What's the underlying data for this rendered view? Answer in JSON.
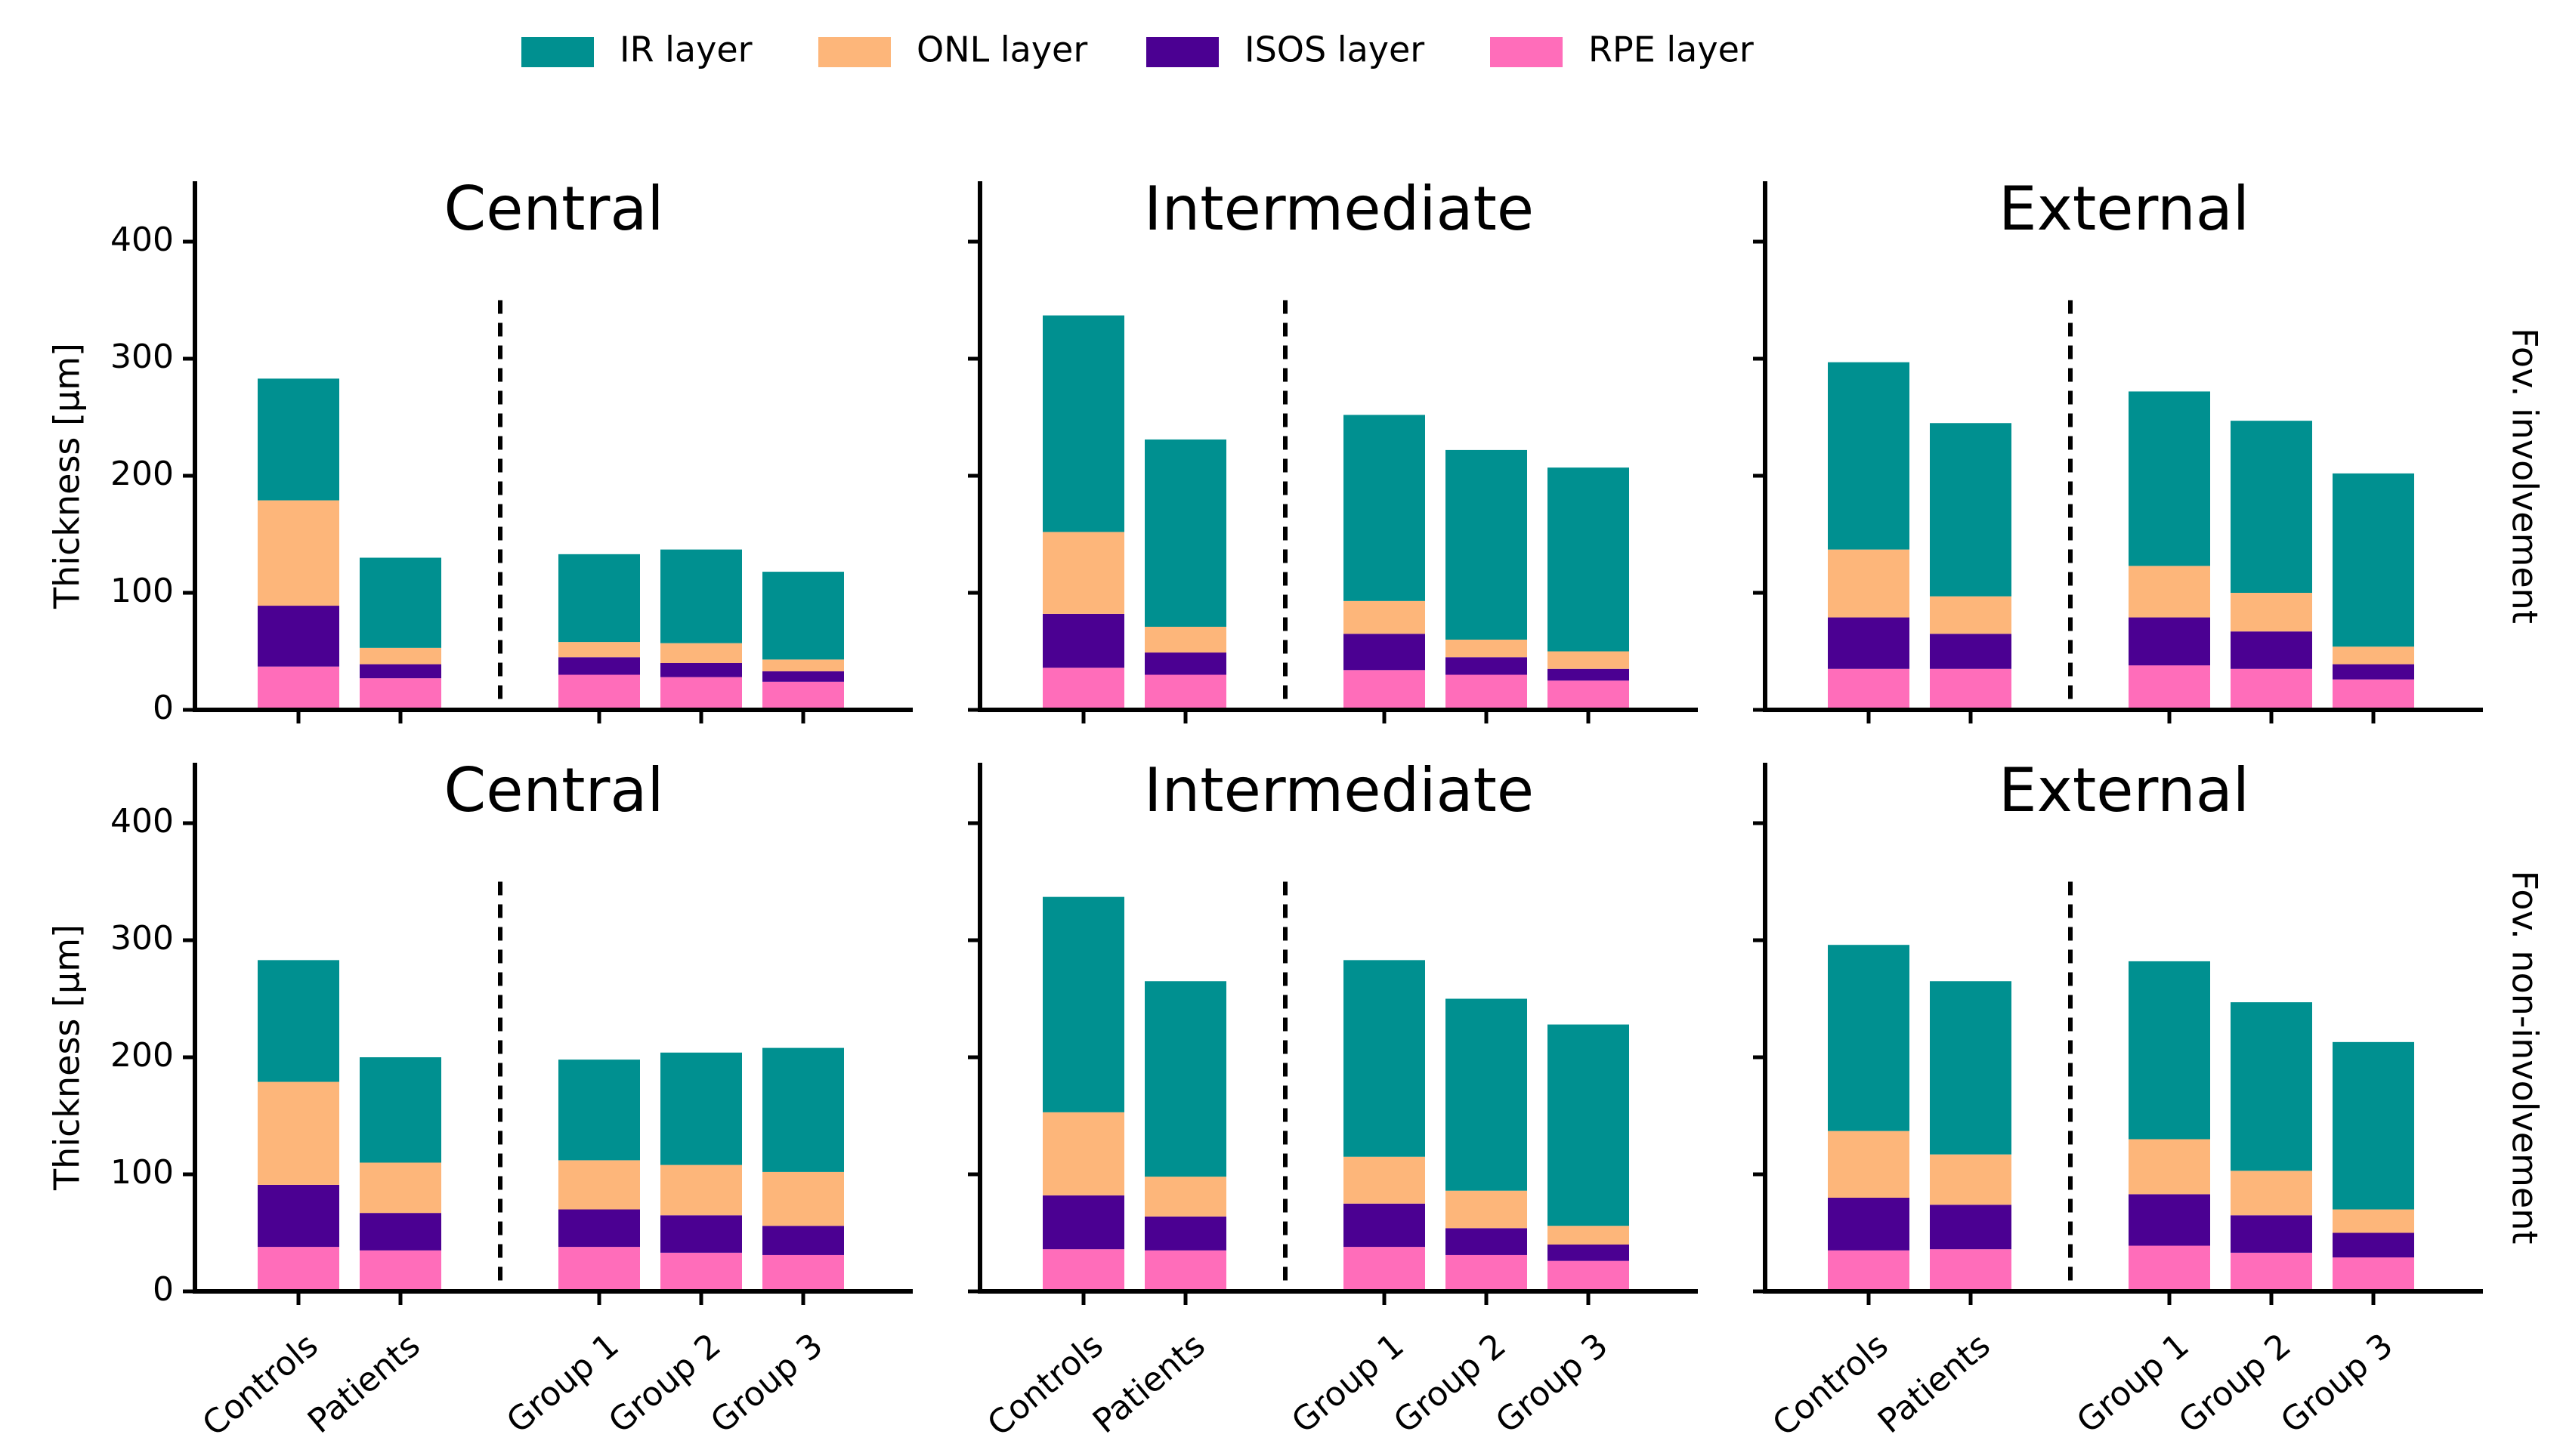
{
  "legend": [
    {
      "label": "IR layer",
      "color": "#009090"
    },
    {
      "label": "ONL layer",
      "color": "#fdb67a"
    },
    {
      "label": "ISOS layer",
      "color": "#4b0092"
    },
    {
      "label": "RPE layer",
      "color": "#ff6dba"
    }
  ],
  "colors": {
    "ir": "#009090",
    "onl": "#fdb67a",
    "isos": "#4b0092",
    "rpe": "#ff6dba"
  },
  "ylabel": "Thickness [μm]",
  "row_labels": [
    "Fov. involvement",
    "Fov. non-involvement"
  ],
  "chart_data": {
    "type": "bar",
    "stacked": true,
    "categories": [
      "Controls",
      "Patients",
      "Group 1",
      "Group 2",
      "Group 3"
    ],
    "series_names": [
      "RPE layer",
      "ISOS layer",
      "ONL layer",
      "IR layer"
    ],
    "ylim": [
      0,
      450
    ],
    "yticks": [
      "0",
      "100",
      "200",
      "300",
      "400"
    ],
    "divider": "dashed line between Patients and Group 1",
    "panels": [
      {
        "title": "Central",
        "row": "Fov. involvement",
        "bars": [
          {
            "category": "Controls",
            "rpe": 37,
            "isos": 52,
            "onl": 90,
            "ir": 104
          },
          {
            "category": "Patients",
            "rpe": 27,
            "isos": 12,
            "onl": 14,
            "ir": 77
          },
          {
            "category": "Group 1",
            "rpe": 30,
            "isos": 15,
            "onl": 13,
            "ir": 75
          },
          {
            "category": "Group 2",
            "rpe": 28,
            "isos": 12,
            "onl": 17,
            "ir": 80
          },
          {
            "category": "Group 3",
            "rpe": 24,
            "isos": 9,
            "onl": 10,
            "ir": 75
          }
        ]
      },
      {
        "title": "Intermediate",
        "row": "Fov. involvement",
        "bars": [
          {
            "category": "Controls",
            "rpe": 36,
            "isos": 46,
            "onl": 70,
            "ir": 185
          },
          {
            "category": "Patients",
            "rpe": 30,
            "isos": 19,
            "onl": 22,
            "ir": 160
          },
          {
            "category": "Group 1",
            "rpe": 34,
            "isos": 31,
            "onl": 28,
            "ir": 159
          },
          {
            "category": "Group 2",
            "rpe": 30,
            "isos": 15,
            "onl": 15,
            "ir": 162
          },
          {
            "category": "Group 3",
            "rpe": 25,
            "isos": 10,
            "onl": 15,
            "ir": 157
          }
        ]
      },
      {
        "title": "External",
        "row": "Fov. involvement",
        "bars": [
          {
            "category": "Controls",
            "rpe": 35,
            "isos": 44,
            "onl": 58,
            "ir": 160
          },
          {
            "category": "Patients",
            "rpe": 35,
            "isos": 30,
            "onl": 32,
            "ir": 148
          },
          {
            "category": "Group 1",
            "rpe": 38,
            "isos": 41,
            "onl": 44,
            "ir": 149
          },
          {
            "category": "Group 2",
            "rpe": 35,
            "isos": 32,
            "onl": 33,
            "ir": 147
          },
          {
            "category": "Group 3",
            "rpe": 26,
            "isos": 13,
            "onl": 15,
            "ir": 148
          }
        ]
      },
      {
        "title": "Central",
        "row": "Fov. non-involvement",
        "bars": [
          {
            "category": "Controls",
            "rpe": 38,
            "isos": 53,
            "onl": 88,
            "ir": 104
          },
          {
            "category": "Patients",
            "rpe": 35,
            "isos": 32,
            "onl": 43,
            "ir": 90
          },
          {
            "category": "Group 1",
            "rpe": 38,
            "isos": 32,
            "onl": 42,
            "ir": 86
          },
          {
            "category": "Group 2",
            "rpe": 33,
            "isos": 32,
            "onl": 43,
            "ir": 96
          },
          {
            "category": "Group 3",
            "rpe": 31,
            "isos": 25,
            "onl": 46,
            "ir": 106
          }
        ]
      },
      {
        "title": "Intermediate",
        "row": "Fov. non-involvement",
        "bars": [
          {
            "category": "Controls",
            "rpe": 36,
            "isos": 46,
            "onl": 71,
            "ir": 184
          },
          {
            "category": "Patients",
            "rpe": 35,
            "isos": 29,
            "onl": 34,
            "ir": 167
          },
          {
            "category": "Group 1",
            "rpe": 38,
            "isos": 37,
            "onl": 40,
            "ir": 168
          },
          {
            "category": "Group 2",
            "rpe": 31,
            "isos": 23,
            "onl": 32,
            "ir": 164
          },
          {
            "category": "Group 3",
            "rpe": 26,
            "isos": 14,
            "onl": 16,
            "ir": 172
          }
        ]
      },
      {
        "title": "External",
        "row": "Fov. non-involvement",
        "bars": [
          {
            "category": "Controls",
            "rpe": 35,
            "isos": 45,
            "onl": 57,
            "ir": 159
          },
          {
            "category": "Patients",
            "rpe": 36,
            "isos": 38,
            "onl": 43,
            "ir": 148
          },
          {
            "category": "Group 1",
            "rpe": 39,
            "isos": 44,
            "onl": 47,
            "ir": 152
          },
          {
            "category": "Group 2",
            "rpe": 33,
            "isos": 32,
            "onl": 38,
            "ir": 144
          },
          {
            "category": "Group 3",
            "rpe": 29,
            "isos": 21,
            "onl": 20,
            "ir": 143
          }
        ]
      }
    ]
  }
}
